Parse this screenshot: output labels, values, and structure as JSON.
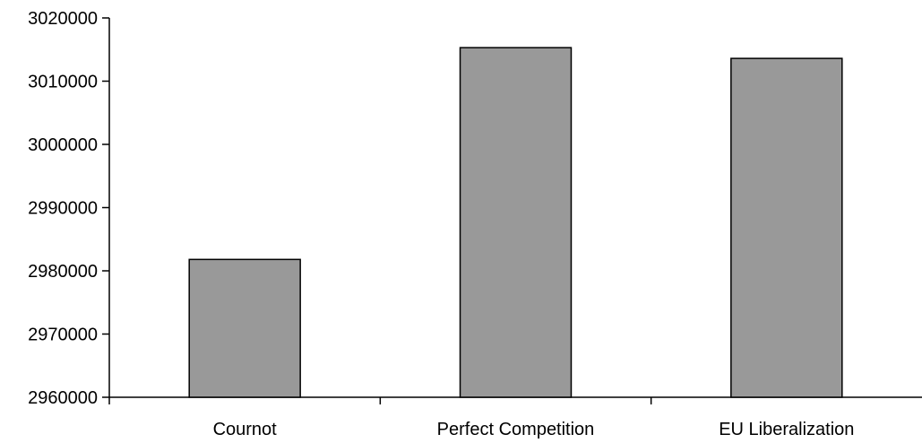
{
  "chart_data": {
    "type": "bar",
    "title": "",
    "xlabel": "",
    "ylabel": "",
    "categories": [
      "Cournot",
      "Perfect Competition",
      "EU Liberalization"
    ],
    "values": [
      2981800,
      3015300,
      3013600
    ],
    "ylim": [
      2960000,
      3020000
    ],
    "yticks": [
      2960000,
      2970000,
      2980000,
      2990000,
      3000000,
      3010000,
      3020000
    ],
    "ytick_labels": [
      "2960000",
      "2970000",
      "2980000",
      "2990000",
      "3000000",
      "3010000",
      "3020000"
    ],
    "grid": false,
    "legend": "none",
    "bar_color": "#999999",
    "bar_edge_color": "#000000"
  }
}
